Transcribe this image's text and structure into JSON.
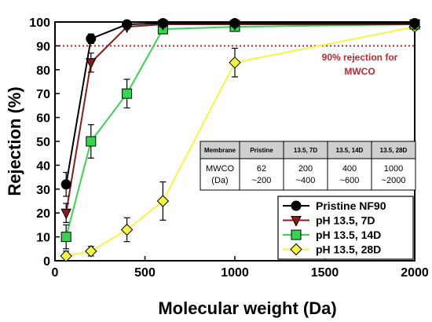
{
  "chart_data": {
    "type": "line",
    "xlabel": "Molecular weight (Da)",
    "ylabel": "Rejection (%)",
    "xlim": [
      0,
      2000
    ],
    "ylim": [
      0,
      100
    ],
    "x_ticks": [
      "0",
      "500",
      "1000",
      "1500",
      "2000"
    ],
    "y_ticks": [
      "0",
      "10",
      "20",
      "30",
      "40",
      "50",
      "60",
      "70",
      "80",
      "90",
      "100"
    ],
    "grid": false,
    "legend_position": "bottom-right",
    "reference_line": {
      "y": 90,
      "color": "#c0272d",
      "style": "dotted"
    },
    "annotation": [
      "90% rejection for",
      "MWCO"
    ],
    "series": [
      {
        "name": "Pristine NF90",
        "color": "#000000",
        "marker": "circle",
        "x": [
          62,
          200,
          400,
          600,
          1000,
          2000
        ],
        "y": [
          32,
          93,
          99,
          99.5,
          99.5,
          99.5
        ],
        "err": [
          5,
          2,
          0.5,
          0.5,
          0.5,
          0.5
        ]
      },
      {
        "name": "pH 13.5, 7D",
        "color": "#8b1a1a",
        "marker": "triangle-down",
        "x": [
          62,
          200,
          400,
          600,
          1000,
          2000
        ],
        "y": [
          20,
          83,
          98,
          99,
          99,
          99
        ],
        "err": [
          4,
          4,
          1,
          0.5,
          0.5,
          0.5
        ]
      },
      {
        "name": "pH 13.5, 14D",
        "color": "#39d353",
        "marker": "square",
        "x": [
          62,
          200,
          400,
          600,
          1000,
          2000
        ],
        "y": [
          10,
          50,
          70,
          97,
          98,
          99
        ],
        "err": [
          5,
          7,
          6,
          1,
          0.5,
          0.5
        ]
      },
      {
        "name": "pH 13.5, 28D",
        "color": "#f5f542",
        "marker": "diamond",
        "x": [
          62,
          200,
          400,
          600,
          1000,
          2000
        ],
        "y": [
          2,
          4,
          13,
          25,
          83,
          98
        ],
        "err": [
          2,
          2,
          5,
          8,
          6,
          1
        ]
      }
    ],
    "table": {
      "headers": [
        "Membrane",
        "Pristine",
        "13.5, 7D",
        "13.5, 14D",
        "13.5, 28D"
      ],
      "row": [
        [
          "MWCO",
          "(Da)"
        ],
        [
          "62",
          "~200"
        ],
        [
          "200",
          "~400"
        ],
        [
          "400",
          "~600"
        ],
        [
          "1000",
          "~2000"
        ]
      ]
    }
  }
}
